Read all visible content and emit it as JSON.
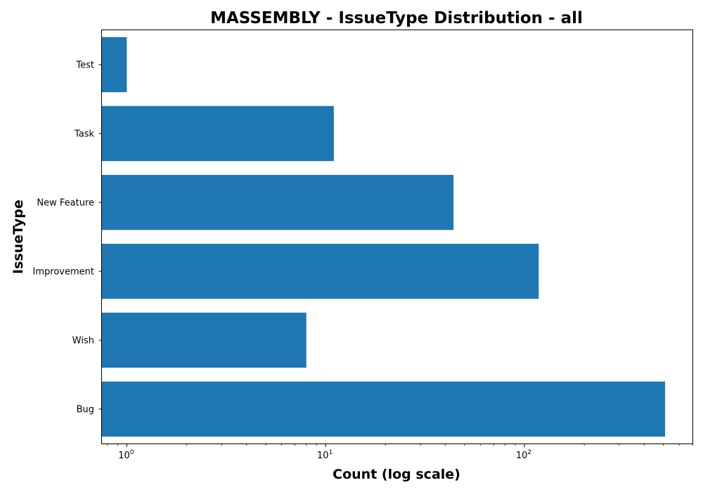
{
  "chart_data": {
    "type": "bar",
    "orientation": "horizontal",
    "title": "MASSEMBLY - IssueType Distribution - all",
    "xlabel": "Count (log scale)",
    "ylabel": "IssueType",
    "x_scale": "log",
    "xlim": [
      0.75,
      700
    ],
    "x_ticks": [
      {
        "value": 1,
        "base": "10",
        "exp": "0"
      },
      {
        "value": 10,
        "base": "10",
        "exp": "1"
      },
      {
        "value": 100,
        "base": "10",
        "exp": "2"
      }
    ],
    "categories": [
      "Bug",
      "Wish",
      "Improvement",
      "New Feature",
      "Task",
      "Test"
    ],
    "values": [
      510,
      8,
      118,
      44,
      11,
      1
    ],
    "bar_color": "#1f77b4",
    "grid": false,
    "legend": false
  }
}
